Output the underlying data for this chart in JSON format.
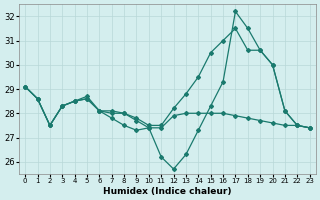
{
  "xlabel": "Humidex (Indice chaleur)",
  "bg_color": "#d4eeee",
  "line_color": "#1a7a6e",
  "grid_color": "#b8d8d8",
  "xlim": [
    -0.5,
    23.5
  ],
  "ylim": [
    25.5,
    32.5
  ],
  "yticks": [
    26,
    27,
    28,
    29,
    30,
    31,
    32
  ],
  "xticks": [
    0,
    1,
    2,
    3,
    4,
    5,
    6,
    7,
    8,
    9,
    10,
    11,
    12,
    13,
    14,
    15,
    16,
    17,
    18,
    19,
    20,
    21,
    22,
    23
  ],
  "line1_x": [
    0,
    1,
    2,
    3,
    4,
    5,
    6,
    7,
    8,
    9,
    10,
    11,
    12,
    13,
    14,
    15,
    16,
    17,
    18,
    19,
    20,
    21,
    22,
    23
  ],
  "line1_y": [
    29.1,
    28.6,
    27.5,
    28.3,
    28.5,
    28.6,
    28.1,
    27.8,
    27.5,
    27.3,
    27.4,
    26.2,
    25.7,
    26.3,
    27.3,
    28.3,
    29.3,
    32.2,
    31.5,
    30.6,
    30.0,
    28.1,
    27.5,
    27.4
  ],
  "line2_x": [
    0,
    1,
    2,
    3,
    4,
    5,
    6,
    7,
    8,
    9,
    10,
    11,
    12,
    13,
    14,
    15,
    16,
    17,
    18,
    19,
    20,
    21,
    22,
    23
  ],
  "line2_y": [
    29.1,
    28.6,
    27.5,
    28.3,
    28.5,
    28.7,
    28.1,
    28.1,
    28.0,
    27.8,
    27.5,
    27.5,
    28.2,
    28.8,
    29.5,
    30.5,
    31.0,
    31.5,
    30.6,
    30.6,
    30.0,
    28.1,
    27.5,
    27.4
  ],
  "line3_x": [
    0,
    1,
    2,
    3,
    4,
    5,
    6,
    7,
    8,
    9,
    10,
    11,
    12,
    13,
    14,
    15,
    16,
    17,
    18,
    19,
    20,
    21,
    22,
    23
  ],
  "line3_y": [
    29.1,
    28.6,
    27.5,
    28.3,
    28.5,
    28.6,
    28.1,
    28.0,
    28.0,
    27.7,
    27.4,
    27.4,
    27.9,
    28.0,
    28.0,
    28.0,
    28.0,
    27.9,
    27.8,
    27.7,
    27.6,
    27.5,
    27.5,
    27.4
  ]
}
